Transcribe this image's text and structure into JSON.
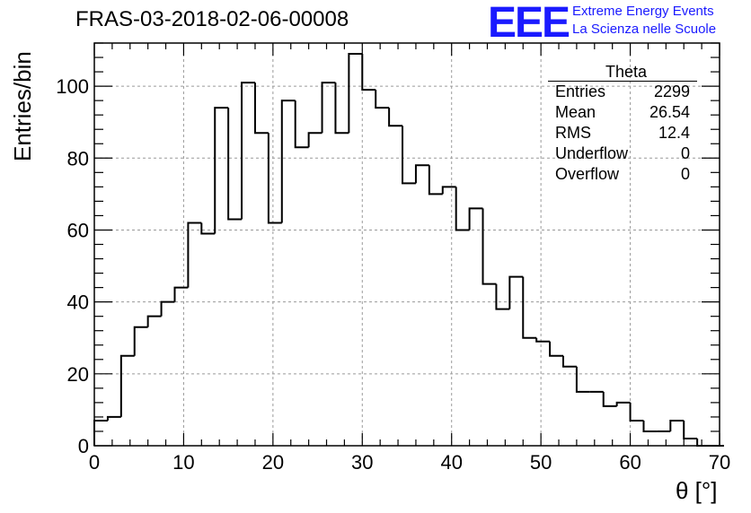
{
  "title": "FRAS-03-2018-02-06-00008",
  "logo": {
    "mark": "EEE",
    "line1": "Extreme Energy Events",
    "line2": "La Scienza nelle Scuole",
    "color": "#1a1aff"
  },
  "stats": {
    "title": "Theta",
    "rows": [
      {
        "label": "Entries",
        "value": "2299"
      },
      {
        "label": "Mean",
        "value": "26.54"
      },
      {
        "label": "RMS",
        "value": "12.4"
      },
      {
        "label": "Underflow",
        "value": "0"
      },
      {
        "label": "Overflow",
        "value": "0"
      }
    ]
  },
  "chart_data": {
    "type": "bar",
    "style": "step-histogram",
    "xlabel": "θ [°]",
    "ylabel": "Entries/bin",
    "xlim": [
      0,
      70
    ],
    "ylim": [
      0,
      112
    ],
    "xticks": [
      0,
      10,
      20,
      30,
      40,
      50,
      60,
      70
    ],
    "yticks": [
      0,
      20,
      40,
      60,
      80,
      100
    ],
    "grid": true,
    "bin_width": 1.5,
    "bin_edges_start": 0,
    "values": [
      7,
      8,
      25,
      33,
      36,
      40,
      44,
      62,
      59,
      94,
      63,
      101,
      87,
      62,
      96,
      83,
      87,
      101,
      87,
      109,
      99,
      94,
      89,
      73,
      78,
      70,
      72,
      60,
      66,
      45,
      38,
      47,
      30,
      29,
      25,
      22,
      15,
      15,
      11,
      12,
      7,
      4,
      4,
      7,
      2,
      0,
      0
    ]
  }
}
